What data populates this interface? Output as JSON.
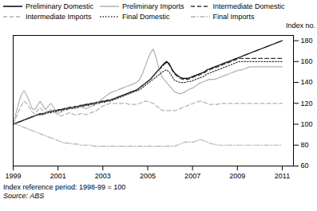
{
  "chart_data": {
    "type": "line",
    "ylabel": "Index no.",
    "annotations": [
      "Index reference period: 1998-99 = 100",
      "Source: ABS"
    ],
    "xlim": [
      1999.0,
      2011.5
    ],
    "xticks": [
      1999,
      2001,
      2003,
      2005,
      2007,
      2009,
      2011
    ],
    "ylim": [
      60,
      185
    ],
    "yticks": [
      60,
      80,
      100,
      120,
      140,
      160,
      180
    ],
    "grid": false,
    "legend": "upper left",
    "x": [
      1999,
      1999.12,
      1999.24,
      1999.36,
      1999.48,
      1999.6,
      1999.72,
      1999.84,
      1999.96,
      2000.08,
      2000.2,
      2000.32,
      2000.44,
      2000.56,
      2000.68,
      2000.8,
      2000.92,
      2001.04,
      2001.16,
      2001.28,
      2001.4,
      2001.52,
      2001.64,
      2001.76,
      2001.88,
      2002,
      2002.12,
      2002.24,
      2002.36,
      2002.48,
      2002.6,
      2002.72,
      2002.84,
      2002.96,
      2003.08,
      2003.2,
      2003.32,
      2003.44,
      2003.56,
      2003.68,
      2003.8,
      2003.92,
      2004.04,
      2004.16,
      2004.28,
      2004.4,
      2004.52,
      2004.64,
      2004.76,
      2004.88,
      2005,
      2005.12,
      2005.24,
      2005.36,
      2005.48,
      2005.6,
      2005.72,
      2005.84,
      2005.96,
      2006.08,
      2006.2,
      2006.32,
      2006.44,
      2006.56,
      2006.68,
      2006.8,
      2006.92,
      2007.04,
      2007.16,
      2007.28,
      2007.4,
      2007.52,
      2007.64,
      2007.76,
      2007.88,
      2008,
      2008.12,
      2008.24,
      2008.36,
      2008.48,
      2008.6,
      2008.72,
      2008.84,
      2008.96,
      2009.08,
      2009.2,
      2009.32,
      2009.44,
      2009.56,
      2009.68,
      2009.8,
      2009.92,
      2010.04,
      2010.16,
      2010.28,
      2010.4,
      2010.52,
      2010.64,
      2010.76,
      2010.88,
      2011
    ],
    "series": [
      {
        "name": "Preliminary Domestic",
        "color": "#000000",
        "line_style": "solid",
        "values": [
          100,
          101,
          102,
          103,
          104,
          105,
          106,
          107,
          108,
          109,
          110,
          110,
          111,
          112,
          112,
          113,
          113,
          114,
          114,
          115,
          115,
          116,
          116,
          117,
          117,
          118,
          118,
          119,
          119,
          120,
          120,
          121,
          121,
          122,
          122,
          123,
          123,
          124,
          125,
          126,
          127,
          128,
          129,
          130,
          131,
          132,
          133,
          135,
          137,
          139,
          141,
          143,
          146,
          149,
          152,
          155,
          158,
          160,
          158,
          153,
          149,
          147,
          145,
          144,
          144,
          144,
          145,
          146,
          147,
          148,
          149,
          150,
          152,
          153,
          154,
          155,
          156,
          157,
          158,
          159,
          160,
          161,
          162,
          163,
          164,
          165,
          166,
          167,
          168,
          169,
          170,
          171,
          172,
          173,
          174,
          175,
          176,
          177,
          178,
          179,
          180
        ]
      },
      {
        "name": "Preliminary Imports",
        "color": "#b0b0b0",
        "line_style": "solid",
        "values": [
          100,
          110,
          120,
          128,
          132,
          128,
          122,
          115,
          114,
          118,
          122,
          118,
          114,
          117,
          120,
          116,
          112,
          110,
          112,
          114,
          116,
          117,
          116,
          115,
          116,
          117,
          116,
          115,
          116,
          117,
          118,
          120,
          122,
          124,
          126,
          128,
          130,
          131,
          132,
          133,
          134,
          135,
          136,
          137,
          138,
          139,
          140,
          143,
          148,
          155,
          162,
          168,
          172,
          165,
          155,
          147,
          143,
          140,
          137,
          134,
          131,
          130,
          129,
          130,
          131,
          133,
          134,
          135,
          137,
          139,
          140,
          141,
          142,
          143,
          143,
          143,
          144,
          145,
          146,
          147,
          148,
          149,
          150,
          151,
          152,
          152,
          153,
          154,
          155,
          155,
          155,
          155,
          155,
          155,
          155,
          155,
          155,
          155,
          155,
          155,
          155
        ]
      },
      {
        "name": "Intermediate Domestic",
        "color": "#333333",
        "line_style": "dashed",
        "values": [
          100,
          101,
          102,
          103,
          104,
          105,
          106,
          107,
          108,
          109,
          110,
          110,
          111,
          112,
          112,
          113,
          113,
          114,
          114,
          115,
          115,
          116,
          116,
          117,
          117,
          118,
          118,
          119,
          119,
          120,
          120,
          121,
          121,
          122,
          122,
          123,
          123,
          124,
          125,
          126,
          127,
          128,
          129,
          130,
          131,
          132,
          133,
          135,
          137,
          139,
          141,
          143,
          146,
          149,
          152,
          154,
          157,
          159,
          157,
          152,
          148,
          146,
          144,
          143,
          143,
          143,
          144,
          145,
          146,
          147,
          148,
          149,
          151,
          152,
          153,
          154,
          155,
          156,
          157,
          158,
          159,
          160,
          161,
          162,
          163,
          163,
          163,
          163,
          163,
          163,
          163,
          163,
          163,
          163,
          163,
          163,
          163,
          163,
          163,
          163,
          163
        ]
      },
      {
        "name": "Intermediate Imports",
        "color": "#b0b0b0",
        "line_style": "dashed",
        "values": [
          100,
          106,
          112,
          118,
          122,
          120,
          116,
          112,
          110,
          113,
          116,
          113,
          110,
          112,
          114,
          112,
          110,
          108,
          108,
          109,
          110,
          111,
          110,
          109,
          109,
          110,
          110,
          109,
          110,
          111,
          112,
          113,
          115,
          117,
          118,
          119,
          120,
          120,
          120,
          120,
          120,
          120,
          120,
          119,
          119,
          119,
          119,
          120,
          121,
          122,
          122,
          121,
          120,
          118,
          116,
          114,
          113,
          113,
          113,
          113,
          113,
          114,
          115,
          116,
          117,
          118,
          119,
          120,
          121,
          122,
          122,
          121,
          120,
          119,
          119,
          119,
          119,
          120,
          120,
          120,
          120,
          120,
          120,
          120,
          120,
          120,
          120,
          120,
          120,
          120,
          120,
          120,
          120,
          120,
          120,
          120,
          120,
          120,
          120,
          120,
          120
        ]
      },
      {
        "name": "Final Domestic",
        "color": "#333333",
        "line_style": "dotted",
        "values": [
          100,
          101,
          102,
          103,
          104,
          105,
          106,
          107,
          108,
          109,
          109,
          109,
          110,
          111,
          111,
          112,
          112,
          113,
          113,
          114,
          114,
          115,
          115,
          116,
          116,
          117,
          117,
          118,
          118,
          119,
          119,
          120,
          120,
          121,
          121,
          122,
          122,
          123,
          124,
          125,
          126,
          127,
          128,
          129,
          130,
          131,
          132,
          133,
          135,
          137,
          139,
          141,
          143,
          145,
          147,
          149,
          151,
          152,
          150,
          146,
          142,
          141,
          140,
          140,
          140,
          141,
          141,
          142,
          143,
          144,
          145,
          146,
          148,
          149,
          150,
          151,
          152,
          153,
          154,
          155,
          156,
          157,
          158,
          159,
          160,
          160,
          160,
          160,
          160,
          160,
          160,
          160,
          160,
          160,
          160,
          160,
          160,
          160,
          160,
          160,
          160
        ]
      },
      {
        "name": "Final Imports",
        "color": "#b0b0b0",
        "line_style": "dashdot",
        "values": [
          100,
          100,
          99,
          98,
          97,
          96,
          95,
          94,
          93,
          92,
          91,
          90,
          89,
          88,
          87,
          86,
          85,
          84,
          83,
          82,
          82,
          82,
          81,
          81,
          81,
          80,
          80,
          80,
          80,
          80,
          79,
          79,
          79,
          79,
          79,
          79,
          79,
          79,
          79,
          79,
          79,
          79,
          79,
          79,
          79,
          79,
          79,
          79,
          79,
          79,
          79,
          79,
          79,
          79,
          79,
          79,
          79,
          79,
          79,
          79,
          79,
          80,
          81,
          82,
          83,
          83,
          83,
          83,
          84,
          85,
          85,
          84,
          83,
          82,
          81,
          81,
          80,
          80,
          80,
          80,
          80,
          80,
          80,
          80,
          80,
          80,
          80,
          80,
          80,
          80,
          80,
          80,
          80,
          80,
          80,
          80,
          80,
          80,
          80,
          80,
          80
        ]
      }
    ]
  }
}
